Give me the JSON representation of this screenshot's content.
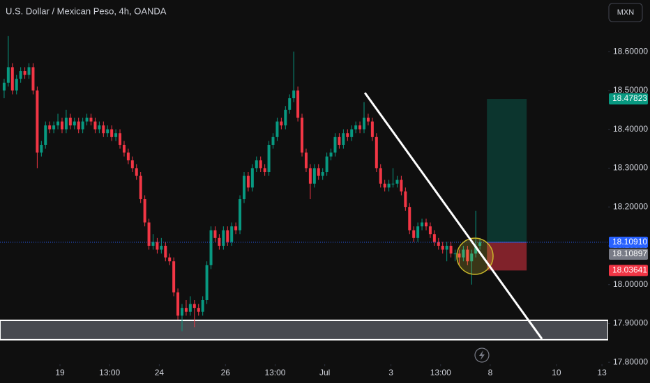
{
  "chart_data": {
    "type": "candlestick",
    "title": "U.S. Dollar / Mexican Peso, 4h, OANDA",
    "currency_button": "MXN",
    "up_color": "#089981",
    "down_color": "#f23645",
    "xlim": [
      -1,
      146
    ],
    "ylim": [
      17.795,
      18.733
    ],
    "xticks": [
      {
        "value": 13.5,
        "label": "19"
      },
      {
        "value": 25.5,
        "label": "13:00"
      },
      {
        "value": 37.5,
        "label": "24"
      },
      {
        "value": 53.5,
        "label": "26"
      },
      {
        "value": 65.5,
        "label": "13:00"
      },
      {
        "value": 77.5,
        "label": "Jul"
      },
      {
        "value": 93.5,
        "label": "3"
      },
      {
        "value": 105.5,
        "label": "13:00"
      },
      {
        "value": 117.5,
        "label": "8"
      },
      {
        "value": 133.5,
        "label": "10"
      },
      {
        "value": 144.5,
        "label": "13"
      }
    ],
    "yticks": [
      {
        "value": 18.6,
        "label": "18.60000"
      },
      {
        "value": 18.5,
        "label": "18.50000"
      },
      {
        "value": 18.4,
        "label": "18.40000"
      },
      {
        "value": 18.3,
        "label": "18.30000"
      },
      {
        "value": 18.2,
        "label": "18.20000"
      },
      {
        "value": 18.1,
        "label": "18.10000"
      },
      {
        "value": 18.0,
        "label": "18.00000"
      },
      {
        "value": 17.9,
        "label": "17.90000"
      },
      {
        "value": 17.8,
        "label": "17.80000"
      }
    ],
    "candles": [
      [
        18.5,
        18.53,
        18.48,
        18.52
      ],
      [
        18.52,
        18.64,
        18.51,
        18.56
      ],
      [
        18.56,
        18.57,
        18.49,
        18.5
      ],
      [
        18.5,
        18.54,
        18.49,
        18.53
      ],
      [
        18.53,
        18.56,
        18.52,
        18.55
      ],
      [
        18.55,
        18.56,
        18.53,
        18.54
      ],
      [
        18.54,
        18.57,
        18.53,
        18.56
      ],
      [
        18.56,
        18.57,
        18.49,
        18.5
      ],
      [
        18.5,
        18.51,
        18.3,
        18.34
      ],
      [
        18.34,
        18.37,
        18.33,
        18.36
      ],
      [
        18.36,
        18.42,
        18.35,
        18.41
      ],
      [
        18.41,
        18.42,
        18.39,
        18.4
      ],
      [
        18.4,
        18.42,
        18.39,
        18.41
      ],
      [
        18.41,
        18.44,
        18.4,
        18.42
      ],
      [
        18.42,
        18.43,
        18.39,
        18.4
      ],
      [
        18.4,
        18.45,
        18.39,
        18.43
      ],
      [
        18.43,
        18.44,
        18.4,
        18.41
      ],
      [
        18.41,
        18.43,
        18.4,
        18.42
      ],
      [
        18.42,
        18.43,
        18.39,
        18.4
      ],
      [
        18.4,
        18.43,
        18.39,
        18.42
      ],
      [
        18.42,
        18.44,
        18.41,
        18.43
      ],
      [
        18.43,
        18.44,
        18.41,
        18.42
      ],
      [
        18.42,
        18.43,
        18.39,
        18.4
      ],
      [
        18.4,
        18.42,
        18.39,
        18.41
      ],
      [
        18.41,
        18.42,
        18.38,
        18.39
      ],
      [
        18.39,
        18.41,
        18.38,
        18.4
      ],
      [
        18.4,
        18.41,
        18.37,
        18.38
      ],
      [
        18.38,
        18.4,
        18.37,
        18.39
      ],
      [
        18.39,
        18.4,
        18.35,
        18.36
      ],
      [
        18.36,
        18.37,
        18.33,
        18.34
      ],
      [
        18.34,
        18.35,
        18.31,
        18.32
      ],
      [
        18.32,
        18.33,
        18.29,
        18.3
      ],
      [
        18.3,
        18.31,
        18.27,
        18.28
      ],
      [
        18.28,
        18.29,
        18.21,
        18.22
      ],
      [
        18.22,
        18.23,
        18.15,
        18.16
      ],
      [
        18.16,
        18.17,
        18.09,
        18.1
      ],
      [
        18.1,
        18.13,
        18.09,
        18.11
      ],
      [
        18.11,
        18.12,
        18.08,
        18.09
      ],
      [
        18.09,
        18.12,
        18.08,
        18.1
      ],
      [
        18.1,
        18.11,
        18.06,
        18.07
      ],
      [
        18.07,
        18.08,
        18.05,
        18.06
      ],
      [
        18.06,
        18.07,
        17.97,
        17.98
      ],
      [
        17.98,
        17.99,
        17.91,
        17.92
      ],
      [
        17.92,
        17.95,
        17.88,
        17.94
      ],
      [
        17.94,
        17.96,
        17.92,
        17.93
      ],
      [
        17.93,
        17.97,
        17.92,
        17.95
      ],
      [
        17.95,
        17.96,
        17.89,
        17.94
      ],
      [
        17.94,
        17.95,
        17.92,
        17.93
      ],
      [
        17.93,
        17.97,
        17.92,
        17.96
      ],
      [
        17.96,
        18.06,
        17.95,
        18.05
      ],
      [
        18.05,
        18.15,
        18.04,
        18.14
      ],
      [
        18.14,
        18.15,
        18.11,
        18.12
      ],
      [
        18.12,
        18.13,
        18.09,
        18.1
      ],
      [
        18.1,
        18.15,
        18.09,
        18.14
      ],
      [
        18.14,
        18.15,
        18.1,
        18.11
      ],
      [
        18.11,
        18.16,
        18.1,
        18.15
      ],
      [
        18.15,
        18.16,
        18.13,
        18.14
      ],
      [
        18.14,
        18.23,
        18.13,
        18.22
      ],
      [
        18.22,
        18.29,
        18.21,
        18.28
      ],
      [
        18.28,
        18.29,
        18.24,
        18.25
      ],
      [
        18.25,
        18.31,
        18.24,
        18.3
      ],
      [
        18.3,
        18.33,
        18.29,
        18.32
      ],
      [
        18.32,
        18.33,
        18.29,
        18.3
      ],
      [
        18.3,
        18.31,
        18.28,
        18.29
      ],
      [
        18.29,
        18.37,
        18.28,
        18.36
      ],
      [
        18.36,
        18.39,
        18.35,
        18.38
      ],
      [
        18.38,
        18.43,
        18.37,
        18.42
      ],
      [
        18.42,
        18.43,
        18.4,
        18.41
      ],
      [
        18.41,
        18.46,
        18.4,
        18.45
      ],
      [
        18.45,
        18.49,
        18.44,
        18.48
      ],
      [
        18.48,
        18.6,
        18.47,
        18.5
      ],
      [
        18.5,
        18.51,
        18.42,
        18.43
      ],
      [
        18.43,
        18.44,
        18.33,
        18.34
      ],
      [
        18.34,
        18.35,
        18.29,
        18.3
      ],
      [
        18.3,
        18.31,
        18.22,
        18.26
      ],
      [
        18.26,
        18.31,
        18.25,
        18.3
      ],
      [
        18.3,
        18.31,
        18.27,
        18.28
      ],
      [
        18.28,
        18.3,
        18.27,
        18.29
      ],
      [
        18.29,
        18.34,
        18.28,
        18.33
      ],
      [
        18.33,
        18.35,
        18.32,
        18.34
      ],
      [
        18.34,
        18.39,
        18.33,
        18.38
      ],
      [
        18.38,
        18.39,
        18.35,
        18.36
      ],
      [
        18.36,
        18.4,
        18.35,
        18.39
      ],
      [
        18.39,
        18.4,
        18.37,
        18.38
      ],
      [
        18.38,
        18.41,
        18.37,
        18.4
      ],
      [
        18.4,
        18.42,
        18.39,
        18.41
      ],
      [
        18.41,
        18.42,
        18.39,
        18.4
      ],
      [
        18.4,
        18.47,
        18.39,
        18.43
      ],
      [
        18.43,
        18.44,
        18.41,
        18.42
      ],
      [
        18.42,
        18.43,
        18.37,
        18.38
      ],
      [
        18.38,
        18.39,
        18.29,
        18.3
      ],
      [
        18.3,
        18.31,
        18.25,
        18.26
      ],
      [
        18.26,
        18.27,
        18.24,
        18.25
      ],
      [
        18.25,
        18.27,
        18.24,
        18.26
      ],
      [
        18.26,
        18.3,
        18.25,
        18.26
      ],
      [
        18.26,
        18.28,
        18.25,
        18.27
      ],
      [
        18.27,
        18.28,
        18.23,
        18.24
      ],
      [
        18.24,
        18.25,
        18.19,
        18.2
      ],
      [
        18.2,
        18.21,
        18.13,
        18.14
      ],
      [
        18.14,
        18.15,
        18.11,
        18.12
      ],
      [
        18.12,
        18.16,
        18.11,
        18.15
      ],
      [
        18.15,
        18.17,
        18.14,
        18.16
      ],
      [
        18.16,
        18.17,
        18.14,
        18.15
      ],
      [
        18.15,
        18.16,
        18.12,
        18.13
      ],
      [
        18.13,
        18.14,
        18.1,
        18.11
      ],
      [
        18.11,
        18.12,
        18.09,
        18.1
      ],
      [
        18.1,
        18.11,
        18.08,
        18.09
      ],
      [
        18.09,
        18.11,
        18.06,
        18.1
      ],
      [
        18.1,
        18.11,
        18.07,
        18.08
      ],
      [
        18.08,
        18.09,
        18.06,
        18.08
      ],
      [
        18.08,
        18.09,
        18.05,
        18.07
      ],
      [
        18.07,
        18.1,
        18.06,
        18.09
      ],
      [
        18.09,
        18.1,
        18.05,
        18.06
      ],
      [
        18.06,
        18.09,
        18.0,
        18.08
      ],
      [
        18.08,
        18.19,
        18.07,
        18.1
      ],
      [
        18.1,
        18.12,
        18.09,
        18.109
      ]
    ],
    "last_price": {
      "value": 18.1091,
      "label": "18.10910"
    },
    "bid_price": 18.10897,
    "position": {
      "x": [
        116.7,
        126.3
      ],
      "target": 18.47823,
      "entry": {
        "value": 18.1091,
        "label": "18.10910"
      },
      "stop": 18.03641
    },
    "trend_line": {
      "x": [
        87.2,
        130.0
      ],
      "y": [
        18.494,
        17.86
      ]
    },
    "support_zone": [
      17.858,
      17.908
    ]
  }
}
